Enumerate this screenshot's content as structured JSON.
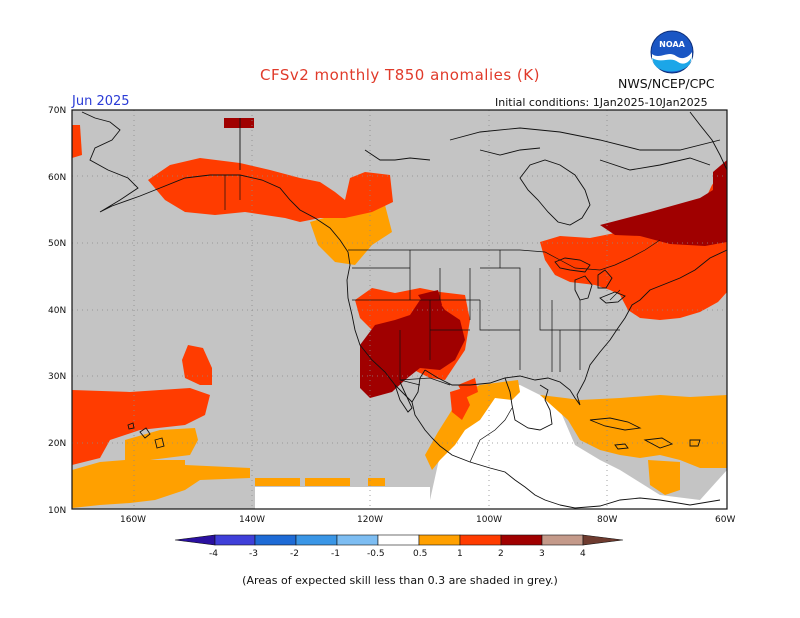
{
  "header": {
    "title": "CFSv2 monthly T850 anomalies (K)",
    "agency": "NWS/NCEP/CPC",
    "month": "Jun 2025",
    "initial_conditions": "Initial conditions: 1Jan2025-10Jan2025"
  },
  "logo": {
    "text": "NOAA",
    "icon": "noaa-logo-icon"
  },
  "map": {
    "region": "North America and eastern Pacific",
    "lat_labels": [
      "70N",
      "60N",
      "50N",
      "40N",
      "30N",
      "20N",
      "10N"
    ],
    "lon_labels": [
      "160W",
      "140W",
      "120W",
      "100W",
      "80W",
      "60W"
    ],
    "grey_meaning": "skill < 0.3",
    "anomaly_colors": {
      "grey": "#c4c4c4",
      "white": "#ffffff",
      "orange_0_5_1": "#ffa000",
      "red_1_2": "#ff3c00",
      "darkred_2_3": "#a00000"
    }
  },
  "legend": {
    "labels": [
      "-4",
      "-3",
      "-2",
      "-1",
      "-0.5",
      "0.5",
      "1",
      "2",
      "3",
      "4"
    ],
    "colors": [
      "#2a10a0",
      "#3f3fd9",
      "#1e6bd6",
      "#3a96e6",
      "#7dbdf2",
      "#ffffff",
      "#ffa000",
      "#ff3c00",
      "#a00000",
      "#c49a8a",
      "#6e3b2f"
    ]
  },
  "footnote": "(Areas of expected skill less than 0.3 are shaded in grey.)"
}
